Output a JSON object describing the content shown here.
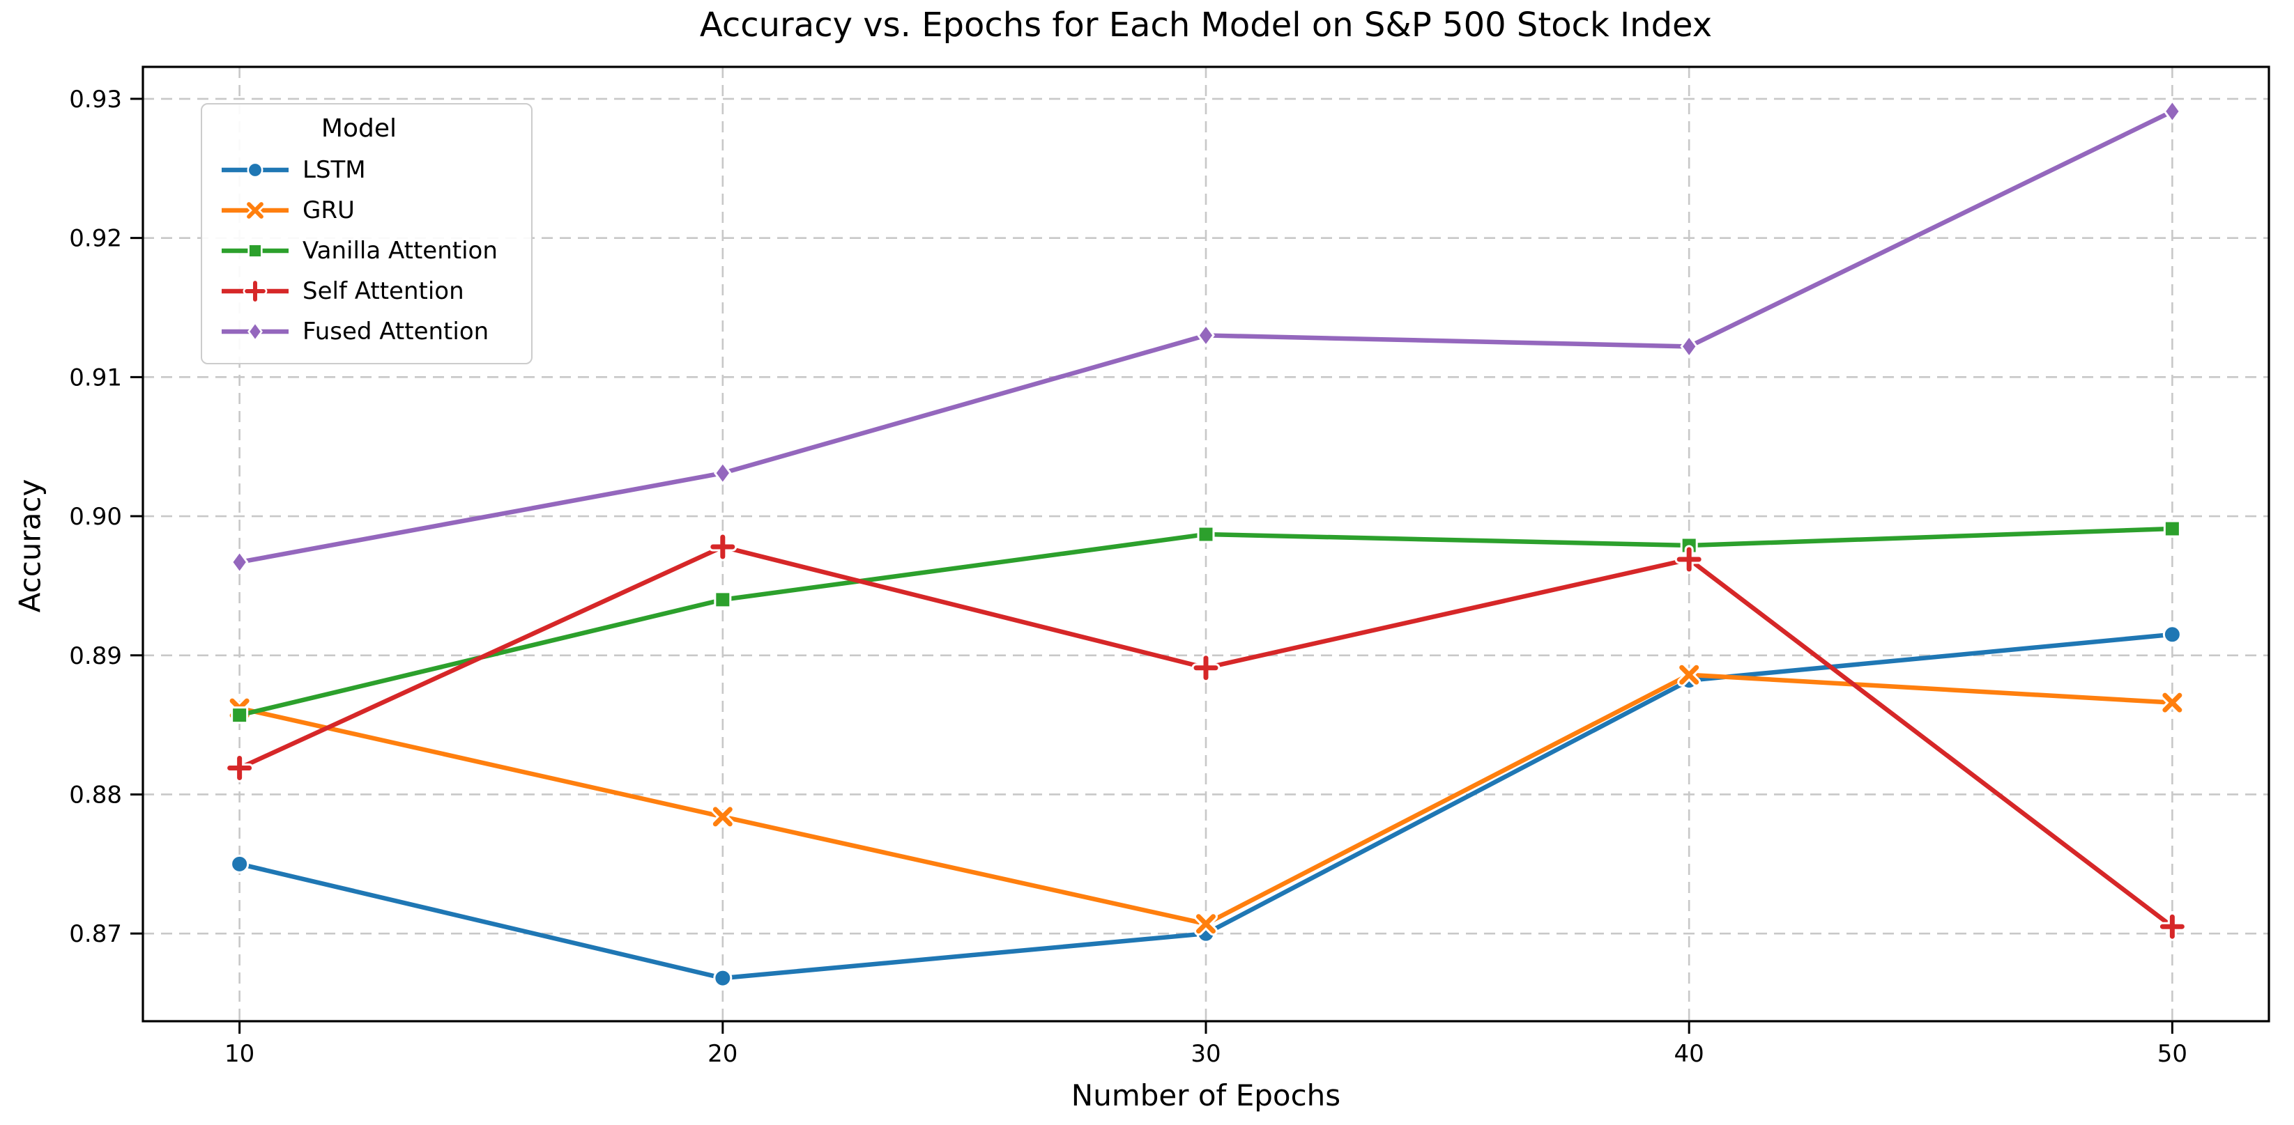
{
  "chart_data": {
    "type": "line",
    "title": "Accuracy vs. Epochs for Each Model on S&P 500 Stock Index",
    "xlabel": "Number of Epochs",
    "ylabel": "Accuracy",
    "x": [
      10,
      20,
      30,
      40,
      50
    ],
    "xtick_labels": [
      "10",
      "20",
      "30",
      "40",
      "50"
    ],
    "yticks": [
      0.87,
      0.88,
      0.89,
      0.9,
      0.91,
      0.92,
      0.93
    ],
    "ytick_labels": [
      "0.87",
      "0.88",
      "0.89",
      "0.90",
      "0.91",
      "0.92",
      "0.93"
    ],
    "xlim": [
      8,
      52
    ],
    "ylim": [
      0.8637,
      0.9323
    ],
    "grid": "dashed-both-axes",
    "legend": {
      "title": "Model",
      "position": "upper-left"
    },
    "series": [
      {
        "name": "LSTM",
        "color": "#1f77b4",
        "marker": "circle",
        "values": [
          0.875,
          0.8668,
          0.87,
          0.8882,
          0.8915
        ]
      },
      {
        "name": "GRU",
        "color": "#ff7f0e",
        "marker": "x",
        "values": [
          0.8862,
          0.8784,
          0.8707,
          0.8886,
          0.8866
        ]
      },
      {
        "name": "Vanilla Attention",
        "color": "#2ca02c",
        "marker": "square",
        "values": [
          0.8857,
          0.894,
          0.8987,
          0.8979,
          0.8991
        ]
      },
      {
        "name": "Self Attention",
        "color": "#d62728",
        "marker": "plus",
        "values": [
          0.8819,
          0.8978,
          0.8891,
          0.8969,
          0.8705
        ]
      },
      {
        "name": "Fused Attention",
        "color": "#9467bd",
        "marker": "diamond",
        "values": [
          0.8967,
          0.9031,
          0.913,
          0.9122,
          0.9291
        ]
      }
    ]
  },
  "colors": {
    "background": "#ffffff",
    "spine": "#000000",
    "grid": "#c8c8c8",
    "text": "#000000",
    "marker_edge": "#ffffff"
  }
}
